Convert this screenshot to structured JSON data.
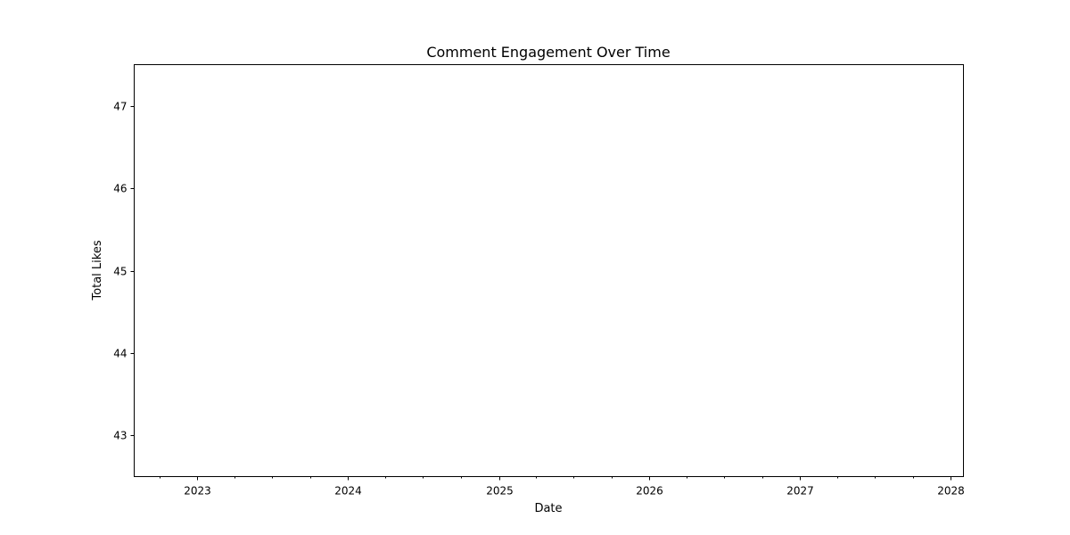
{
  "chart_data": {
    "type": "line",
    "title": "Comment Engagement Over Time",
    "xlabel": "Date",
    "ylabel": "Total Likes",
    "x_axis": {
      "kind": "date",
      "range": [
        "2022-08-01",
        "2028-02-01"
      ],
      "tick_labels": [
        "2023",
        "2024",
        "2025",
        "2026",
        "2027",
        "2028"
      ]
    },
    "y_axis": {
      "range": [
        42.5,
        47.5
      ],
      "ticks": [
        43,
        44,
        45,
        46,
        47
      ]
    },
    "series": [],
    "grid": false,
    "legend": "none"
  }
}
